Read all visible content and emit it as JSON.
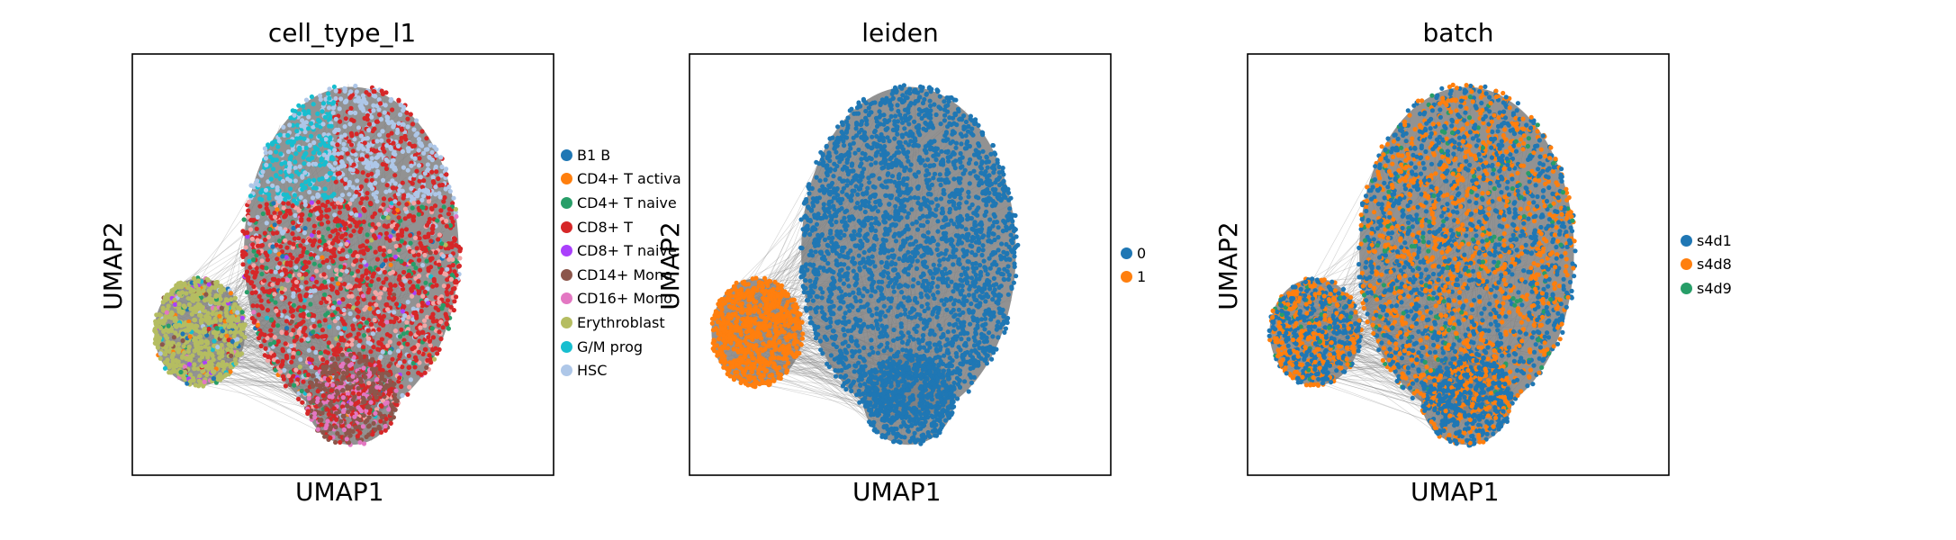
{
  "chart_data": [
    {
      "type": "scatter",
      "title": "cell_type_l1",
      "xlabel": "UMAP1",
      "ylabel": "UMAP2",
      "grid": false,
      "ticks": false,
      "legend_position": "right",
      "colors": {
        "edges": "#7f7f7f"
      },
      "legend": [
        {
          "label": "B1 B",
          "color": "#1f77b4"
        },
        {
          "label": "CD4+ T activa",
          "color": "#ff7f0e"
        },
        {
          "label": "CD4+ T naive",
          "color": "#279e68"
        },
        {
          "label": "CD8+ T",
          "color": "#d62728"
        },
        {
          "label": "CD8+ T naive",
          "color": "#aa40fc"
        },
        {
          "label": "CD14+ Mono",
          "color": "#8c564b"
        },
        {
          "label": "CD16+ Mono",
          "color": "#e377c2"
        },
        {
          "label": "Erythroblast",
          "color": "#b5bd61"
        },
        {
          "label": "G/M prog",
          "color": "#17becf"
        },
        {
          "label": "HSC",
          "color": "#aec7e8"
        }
      ]
    },
    {
      "type": "scatter",
      "title": "leiden",
      "xlabel": "UMAP1",
      "ylabel": "UMAP2",
      "grid": false,
      "ticks": false,
      "legend_position": "right",
      "colors": {
        "edges": "#7f7f7f"
      },
      "legend": [
        {
          "label": "0",
          "color": "#1f77b4"
        },
        {
          "label": "1",
          "color": "#ff7f0e"
        }
      ]
    },
    {
      "type": "scatter",
      "title": "batch",
      "xlabel": "UMAP1",
      "ylabel": "UMAP2",
      "grid": false,
      "ticks": false,
      "legend_position": "right",
      "colors": {
        "edges": "#7f7f7f"
      },
      "legend": [
        {
          "label": "s4d1",
          "color": "#1f77b4"
        },
        {
          "label": "s4d8",
          "color": "#ff7f0e"
        },
        {
          "label": "s4d9",
          "color": "#279e68"
        }
      ]
    }
  ]
}
